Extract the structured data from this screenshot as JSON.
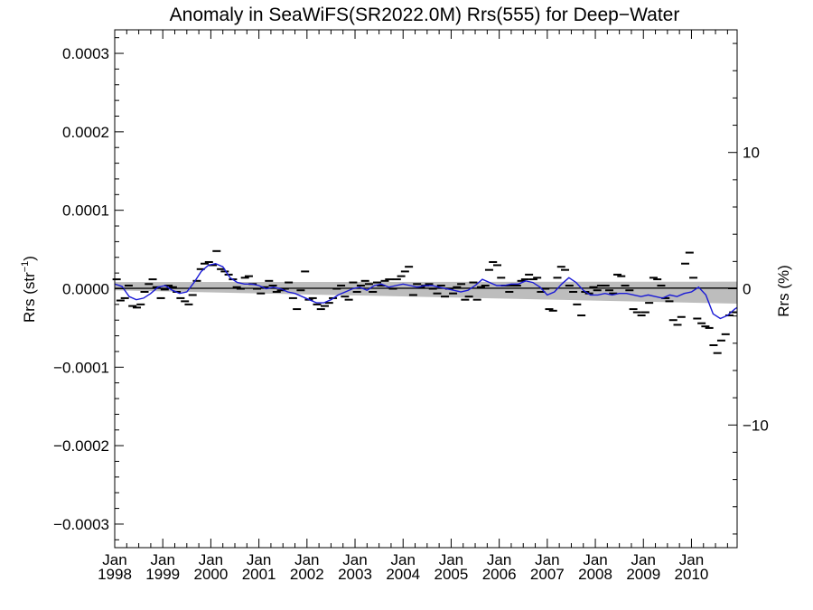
{
  "chart_data": {
    "type": "line",
    "title": "Anomaly in SeaWiFS(SR2022.0M) Rrs(555) for Deep−Water",
    "ylabel_left": {
      "base": "Rrs (str",
      "sup": "−1",
      "close": ")"
    },
    "ylabel_right": "Rrs (%)",
    "x_range": [
      1998.0,
      2010.95
    ],
    "y_range": [
      -0.00033,
      0.00033
    ],
    "y_right_range": [
      -19.0,
      19.0
    ],
    "grid": false,
    "y_ticks": [
      {
        "value": 0.0003,
        "label": "0.0003"
      },
      {
        "value": 0.0002,
        "label": "0.0002"
      },
      {
        "value": 0.0001,
        "label": "0.0001"
      },
      {
        "value": 0.0,
        "label": "0.0000"
      },
      {
        "value": -0.0001,
        "label": "−0.0001"
      },
      {
        "value": -0.0002,
        "label": "−0.0002"
      },
      {
        "value": -0.0003,
        "label": "−0.0003"
      }
    ],
    "y_right_ticks": [
      {
        "value": 10,
        "label": "10"
      },
      {
        "value": 0,
        "label": "0"
      },
      {
        "value": -10,
        "label": "−10"
      }
    ],
    "x_ticks": [
      {
        "value": 1998,
        "month": "Jan",
        "year": "1998"
      },
      {
        "value": 1999,
        "month": "Jan",
        "year": "1999"
      },
      {
        "value": 2000,
        "month": "Jan",
        "year": "2000"
      },
      {
        "value": 2001,
        "month": "Jan",
        "year": "2001"
      },
      {
        "value": 2002,
        "month": "Jan",
        "year": "2002"
      },
      {
        "value": 2003,
        "month": "Jan",
        "year": "2003"
      },
      {
        "value": 2004,
        "month": "Jan",
        "year": "2004"
      },
      {
        "value": 2005,
        "month": "Jan",
        "year": "2005"
      },
      {
        "value": 2006,
        "month": "Jan",
        "year": "2006"
      },
      {
        "value": 2007,
        "month": "Jan",
        "year": "2007"
      },
      {
        "value": 2008,
        "month": "Jan",
        "year": "2008"
      },
      {
        "value": 2009,
        "month": "Jan",
        "year": "2009"
      },
      {
        "value": 2010,
        "month": "Jan",
        "year": "2010"
      }
    ],
    "monthly_anomaly": {
      "x": [
        1998.04,
        1998.12,
        1998.21,
        1998.29,
        1998.37,
        1998.46,
        1998.54,
        1998.62,
        1998.71,
        1998.79,
        1998.87,
        1998.96,
        1999.04,
        1999.12,
        1999.21,
        1999.29,
        1999.37,
        1999.46,
        1999.54,
        1999.62,
        1999.71,
        1999.79,
        1999.87,
        1999.96,
        2000.04,
        2000.12,
        2000.21,
        2000.29,
        2000.37,
        2000.46,
        2000.54,
        2000.62,
        2000.71,
        2000.79,
        2000.87,
        2000.96,
        2001.04,
        2001.12,
        2001.21,
        2001.29,
        2001.37,
        2001.46,
        2001.54,
        2001.62,
        2001.71,
        2001.79,
        2001.87,
        2001.96,
        2002.04,
        2002.12,
        2002.21,
        2002.29,
        2002.37,
        2002.46,
        2002.54,
        2002.62,
        2002.71,
        2002.79,
        2002.87,
        2002.96,
        2003.04,
        2003.12,
        2003.21,
        2003.29,
        2003.37,
        2003.46,
        2003.54,
        2003.62,
        2003.71,
        2003.79,
        2003.87,
        2003.96,
        2004.04,
        2004.12,
        2004.21,
        2004.29,
        2004.37,
        2004.46,
        2004.54,
        2004.62,
        2004.71,
        2004.79,
        2004.87,
        2004.96,
        2005.04,
        2005.12,
        2005.21,
        2005.29,
        2005.37,
        2005.46,
        2005.54,
        2005.62,
        2005.71,
        2005.79,
        2005.87,
        2005.96,
        2006.04,
        2006.12,
        2006.21,
        2006.29,
        2006.37,
        2006.46,
        2006.54,
        2006.62,
        2006.71,
        2006.79,
        2006.87,
        2006.96,
        2007.04,
        2007.12,
        2007.21,
        2007.29,
        2007.37,
        2007.46,
        2007.54,
        2007.62,
        2007.71,
        2007.79,
        2007.87,
        2007.96,
        2008.04,
        2008.12,
        2008.21,
        2008.29,
        2008.37,
        2008.46,
        2008.54,
        2008.62,
        2008.71,
        2008.79,
        2008.87,
        2008.96,
        2009.04,
        2009.12,
        2009.21,
        2009.29,
        2009.37,
        2009.46,
        2009.54,
        2009.62,
        2009.71,
        2009.79,
        2009.87,
        2009.96,
        2010.04,
        2010.12,
        2010.21,
        2010.29,
        2010.37,
        2010.46,
        2010.54,
        2010.62,
        2010.71,
        2010.79,
        2010.87
      ],
      "y": [
        1.2e-05,
        -1.5e-05,
        -1.2e-05,
        4e-06,
        -2.2e-05,
        -2.4e-05,
        -2e-05,
        -4e-06,
        6e-06,
        1.2e-05,
        2e-06,
        -1.2e-05,
        -1e-06,
        4e-06,
        2e-06,
        -4e-06,
        -1.2e-05,
        -1.6e-05,
        -2e-05,
        -8e-06,
        1e-05,
        2.5e-05,
        3.2e-05,
        3.4e-05,
        3e-05,
        4.8e-05,
        2.5e-05,
        2.2e-05,
        1.8e-05,
        1.2e-05,
        2e-06,
        0.0,
        1.4e-05,
        1.6e-05,
        6e-06,
        0.0,
        -6e-06,
        2e-06,
        1e-05,
        4e-06,
        -4e-06,
        -2e-06,
        0.0,
        8e-06,
        -1.2e-05,
        -2.6e-05,
        -2e-06,
        2.2e-05,
        -1.4e-05,
        -1.2e-05,
        -2e-05,
        -2.6e-05,
        -2.2e-05,
        -1.8e-05,
        -1.2e-05,
        0.0,
        4e-06,
        -1e-05,
        -1.4e-05,
        8e-06,
        -4e-06,
        4e-06,
        1e-05,
        6e-06,
        -4e-06,
        8e-06,
        4e-06,
        1e-05,
        1.2e-05,
        0.0,
        1.2e-05,
        1.6e-05,
        2.2e-05,
        2.8e-05,
        -8e-06,
        6e-06,
        2e-06,
        4e-06,
        6e-06,
        0.0,
        -6e-06,
        4e-06,
        -1e-05,
        0.0,
        -6e-06,
        2e-06,
        6e-06,
        -1.4e-05,
        -1e-05,
        8e-06,
        -1.4e-05,
        2e-06,
        4e-06,
        2.4e-05,
        3.4e-05,
        3e-05,
        1.4e-05,
        4e-06,
        -4e-06,
        4e-06,
        4e-06,
        1e-05,
        1.2e-05,
        1.8e-05,
        1.2e-05,
        1.4e-05,
        -4e-06,
        0.0,
        -2.6e-05,
        -2.8e-05,
        1.4e-05,
        2.8e-05,
        2.4e-05,
        4e-06,
        -4e-06,
        -2e-05,
        -3.4e-05,
        -4e-06,
        -6e-06,
        2e-06,
        -2e-06,
        4e-06,
        4e-06,
        -2e-06,
        -6e-06,
        1.8e-05,
        1.6e-05,
        4e-06,
        -2e-06,
        -2.6e-05,
        -3e-05,
        -3.4e-05,
        -3e-05,
        -1.8e-05,
        1.4e-05,
        1.2e-05,
        4e-06,
        -1.2e-05,
        -1.6e-05,
        -4e-05,
        -4.6e-05,
        -3.6e-05,
        3.2e-05,
        4.6e-05,
        1.4e-05,
        -3.8e-05,
        -4.4e-05,
        -4.8e-05,
        -5e-05,
        -7.2e-05,
        -8.2e-05,
        -6.6e-05,
        -5.8e-05,
        -3.4e-05,
        -3e-05
      ]
    },
    "smoothed_anomaly": {
      "color": "#1a1ad6",
      "x": [
        1998.0,
        1998.15,
        1998.3,
        1998.45,
        1998.6,
        1998.75,
        1998.9,
        1999.05,
        1999.2,
        1999.35,
        1999.5,
        1999.65,
        1999.8,
        1999.95,
        2000.1,
        2000.25,
        2000.4,
        2000.55,
        2000.7,
        2000.85,
        2001.0,
        2001.15,
        2001.3,
        2001.45,
        2001.6,
        2001.75,
        2001.9,
        2002.05,
        2002.2,
        2002.35,
        2002.5,
        2002.65,
        2002.8,
        2002.95,
        2003.1,
        2003.25,
        2003.4,
        2003.55,
        2003.7,
        2003.85,
        2004.0,
        2004.15,
        2004.3,
        2004.45,
        2004.6,
        2004.75,
        2004.9,
        2005.05,
        2005.2,
        2005.35,
        2005.5,
        2005.65,
        2005.8,
        2005.95,
        2006.1,
        2006.25,
        2006.4,
        2006.55,
        2006.7,
        2006.85,
        2007.0,
        2007.15,
        2007.3,
        2007.45,
        2007.6,
        2007.75,
        2007.9,
        2008.05,
        2008.2,
        2008.35,
        2008.5,
        2008.65,
        2008.8,
        2008.95,
        2009.1,
        2009.25,
        2009.4,
        2009.55,
        2009.7,
        2009.85,
        2010.0,
        2010.15,
        2010.3,
        2010.45,
        2010.6,
        2010.75,
        2010.9,
        2010.95
      ],
      "y": [
        6e-06,
        3e-06,
        -1e-05,
        -1.4e-05,
        -1.2e-05,
        -6e-06,
        2e-06,
        4e-06,
        -2e-06,
        -6e-06,
        -4e-06,
        8e-06,
        2.2e-05,
        3e-05,
        3.2e-05,
        2.8e-05,
        1.4e-05,
        8e-06,
        6e-06,
        6e-06,
        4e-06,
        0.0,
        2e-06,
        0.0,
        -4e-06,
        -6e-06,
        -1e-05,
        -1.4e-05,
        -1.8e-05,
        -1.8e-05,
        -1.4e-05,
        -8e-06,
        -4e-06,
        0.0,
        2e-06,
        -2e-06,
        4e-06,
        6e-06,
        2e-06,
        4e-06,
        6e-06,
        4e-06,
        2e-06,
        4e-06,
        4e-06,
        2e-06,
        0.0,
        -2e-06,
        -4e-06,
        -2e-06,
        4e-06,
        1.2e-05,
        8e-06,
        4e-06,
        4e-06,
        6e-06,
        6e-06,
        1e-05,
        8e-06,
        2e-06,
        -8e-06,
        -4e-06,
        6e-06,
        1.4e-05,
        8e-06,
        -2e-06,
        -8e-06,
        -8e-06,
        -6e-06,
        -8e-06,
        -6e-06,
        -6e-06,
        -8e-06,
        -1e-05,
        -8e-06,
        -1e-05,
        -1.2e-05,
        -8e-06,
        -1e-05,
        -6e-06,
        -4e-06,
        2e-06,
        -8e-06,
        -3.2e-05,
        -3.8e-05,
        -3.4e-05,
        -2.6e-05,
        -2.4e-05
      ]
    },
    "trend_line": {
      "x": [
        1998.0,
        2010.95
      ],
      "y": [
        5e-07,
        8e-07
      ]
    },
    "confidence_band": {
      "x": [
        1998.0,
        2010.95
      ],
      "upper": [
        8.5e-06,
        9e-06
      ],
      "lower": [
        -2e-06,
        -1.9e-05
      ]
    }
  }
}
